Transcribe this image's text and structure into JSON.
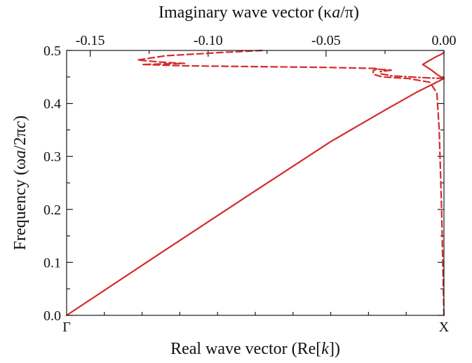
{
  "chart_data": {
    "type": "line",
    "colors": {
      "curve": "#d42b2b",
      "axes": "#1a1a1a",
      "text": "#111111"
    },
    "x_bottom": {
      "label": "Real wave vector (Re[k])",
      "label_parts": [
        "Real wave vector (Re[",
        "k",
        "])"
      ],
      "range": [
        0,
        1
      ],
      "tick_labels": [
        {
          "x": 0,
          "text": "Γ"
        },
        {
          "x": 1,
          "text": "X"
        }
      ],
      "minor_ticks": [
        0.1,
        0.2,
        0.3,
        0.4,
        0.5,
        0.6,
        0.7,
        0.8,
        0.9
      ]
    },
    "x_top": {
      "label": "Imaginary wave vector (κa/π)",
      "label_parts": [
        "Imaginary wave vector (κ",
        "a",
        "/π)"
      ],
      "range": [
        -0.16,
        0.0
      ],
      "major_ticks": [
        -0.15,
        -0.1,
        -0.05,
        0.0
      ],
      "tick_labels": [
        "-0.15",
        "-0.10",
        "-0.05",
        "0.00"
      ],
      "minor_ticks": [
        -0.125,
        -0.075,
        -0.025
      ]
    },
    "y": {
      "label": "Frequency (ωa/2πc)",
      "label_parts": [
        "Frequency (ω",
        "a",
        "/2π",
        "c",
        ")"
      ],
      "range": [
        0,
        0.5
      ],
      "major_ticks": [
        0.0,
        0.1,
        0.2,
        0.3,
        0.4,
        0.5
      ],
      "tick_labels": [
        "0.0",
        "0.1",
        "0.2",
        "0.3",
        "0.4",
        "0.5"
      ],
      "minor_ticks": [
        0.05,
        0.15,
        0.25,
        0.35,
        0.45
      ]
    },
    "series": [
      {
        "style": "solid",
        "axis": "bottom",
        "points": [
          [
            0,
            0
          ],
          [
            0.25,
            0.118
          ],
          [
            0.5,
            0.235
          ],
          [
            0.7,
            0.328
          ],
          [
            0.85,
            0.39
          ],
          [
            0.93,
            0.422
          ],
          [
            0.975,
            0.438
          ],
          [
            1.0,
            0.447
          ]
        ]
      },
      {
        "style": "solid",
        "axis": "top",
        "points": [
          [
            0.0,
            0.447
          ],
          [
            -0.001,
            0.449
          ],
          [
            -0.003,
            0.455
          ],
          [
            -0.005,
            0.462
          ],
          [
            -0.007,
            0.468
          ],
          [
            -0.009,
            0.4735
          ],
          [
            -0.007,
            0.479
          ],
          [
            -0.005,
            0.484
          ],
          [
            -0.003,
            0.489
          ],
          [
            -0.001,
            0.493
          ],
          [
            0.0,
            0.497
          ]
        ]
      },
      {
        "style": "dashed",
        "axis": "top",
        "points": [
          [
            0.0,
            0.0
          ],
          [
            -0.001,
            0.2
          ],
          [
            -0.002,
            0.35
          ],
          [
            -0.003,
            0.42
          ],
          [
            -0.006,
            0.44
          ],
          [
            -0.015,
            0.447
          ],
          [
            -0.026,
            0.45
          ],
          [
            -0.03,
            0.455
          ],
          [
            -0.03,
            0.462
          ],
          [
            -0.028,
            0.466
          ],
          [
            -0.05,
            0.468
          ],
          [
            -0.11,
            0.471
          ],
          [
            -0.128,
            0.4735
          ],
          [
            -0.11,
            0.4755
          ],
          [
            -0.12,
            0.478
          ],
          [
            -0.13,
            0.482
          ],
          [
            -0.118,
            0.49
          ],
          [
            -0.095,
            0.496
          ],
          [
            -0.077,
            0.5
          ]
        ]
      },
      {
        "style": "dashdot",
        "axis": "top",
        "points": [
          [
            0.0,
            0.447
          ],
          [
            -0.01,
            0.449
          ],
          [
            -0.022,
            0.452
          ],
          [
            -0.027,
            0.456
          ],
          [
            -0.027,
            0.46
          ],
          [
            -0.022,
            0.463
          ],
          [
            -0.03,
            0.465
          ]
        ]
      }
    ]
  }
}
